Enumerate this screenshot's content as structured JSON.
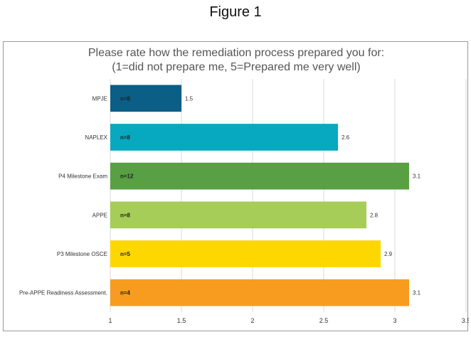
{
  "figure_label": "Figure 1",
  "chart_data": {
    "type": "bar",
    "orientation": "horizontal",
    "title": "Please rate how the remediation process prepared you for:",
    "subtitle": "(1=did not prepare me, 5=Prepared me very well)",
    "categories": [
      "MPJE",
      "NAPLEX",
      "P4 Milestone Exam",
      "APPE",
      "P3 Milestone OSCE",
      "Pre-APPE Readiness Assessment."
    ],
    "values": [
      1.5,
      2.6,
      3.1,
      2.8,
      2.9,
      3.1
    ],
    "value_labels": [
      "1.5",
      "2.6",
      "3.1",
      "2.8",
      "2.9",
      "3.1"
    ],
    "n_labels": [
      "n=8",
      "n=8",
      "n=12",
      "n=8",
      "n=5",
      "n=4"
    ],
    "colors": [
      "#0b5e85",
      "#06a9bf",
      "#58a043",
      "#a6cd57",
      "#fed701",
      "#f89c1f"
    ],
    "xlim": [
      1,
      3.5
    ],
    "xticks": [
      1,
      1.5,
      2,
      2.5,
      3,
      3.5
    ],
    "xtick_labels": [
      "1",
      "1.5",
      "2",
      "2.5",
      "3",
      "3.5"
    ],
    "grid": true,
    "legend": "none"
  }
}
